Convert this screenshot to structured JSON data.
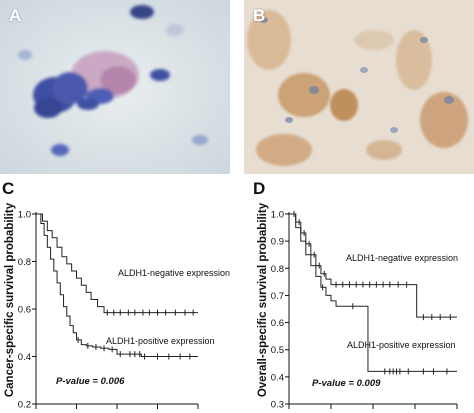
{
  "panels": {
    "a": {
      "letter": "A"
    },
    "b": {
      "letter": "B"
    },
    "c": {
      "letter": "C"
    },
    "d": {
      "letter": "D"
    }
  },
  "colors": {
    "axis": "#111111",
    "curve": "#222222",
    "stain_blue": "#2f3f9c",
    "stain_brown": "#b9824a"
  },
  "chart_data": [
    {
      "panel": "C",
      "type": "line",
      "step": true,
      "title": "",
      "xlabel": "",
      "ylabel": "Cancer-specific survival probability",
      "ylim": [
        0.2,
        1.0
      ],
      "xlim": [
        0,
        100
      ],
      "yticks": [
        0.2,
        0.4,
        0.6,
        0.8,
        1.0
      ],
      "ytick_labels": [
        "0.2",
        "0.4",
        "0.6",
        "0.8",
        "1.0"
      ],
      "grid": false,
      "p_value_text": "P-value = 0.006",
      "series": [
        {
          "name": "ALDH1-negative expression",
          "x": [
            0,
            4,
            7,
            10,
            13,
            16,
            19,
            22,
            25,
            28,
            31,
            34,
            38,
            42,
            100
          ],
          "y": [
            1.0,
            0.97,
            0.93,
            0.9,
            0.86,
            0.82,
            0.79,
            0.76,
            0.73,
            0.7,
            0.67,
            0.64,
            0.61,
            0.585,
            0.585
          ],
          "censor_x": [
            44,
            48,
            52,
            57,
            61,
            66,
            70,
            75,
            80,
            86,
            92,
            97
          ]
        },
        {
          "name": "ALDH1-positive expression",
          "x": [
            0,
            3,
            5,
            7,
            9,
            11,
            13,
            15,
            17,
            19,
            21,
            23,
            25,
            28,
            31,
            35,
            40,
            45,
            50,
            65,
            100
          ],
          "y": [
            1.0,
            0.96,
            0.91,
            0.86,
            0.81,
            0.76,
            0.71,
            0.66,
            0.61,
            0.57,
            0.53,
            0.5,
            0.47,
            0.45,
            0.445,
            0.44,
            0.435,
            0.43,
            0.41,
            0.4,
            0.4
          ],
          "censor_x": [
            26,
            32,
            37,
            42,
            47,
            52,
            58,
            61,
            64,
            67,
            75,
            82,
            89,
            95
          ]
        }
      ]
    },
    {
      "panel": "D",
      "type": "line",
      "step": true,
      "title": "",
      "xlabel": "",
      "ylabel": "Overall-specific survival probability",
      "ylim": [
        0.3,
        1.0
      ],
      "xlim": [
        0,
        100
      ],
      "yticks": [
        0.3,
        0.4,
        0.5,
        0.6,
        0.7,
        0.8,
        0.9,
        1.0
      ],
      "ytick_labels": [
        "0.3",
        "0.4",
        "0.5",
        "0.6",
        "0.7",
        "0.8",
        "0.9",
        "1.0"
      ],
      "grid": false,
      "p_value_text": "P-value = 0.009",
      "series": [
        {
          "name": "ALDH1-negative expression",
          "x": [
            0,
            4,
            7,
            10,
            13,
            16,
            19,
            22,
            25,
            76,
            100
          ],
          "y": [
            1.0,
            0.97,
            0.93,
            0.89,
            0.85,
            0.81,
            0.78,
            0.76,
            0.74,
            0.62,
            0.62
          ],
          "censor_x": [
            3,
            6,
            9,
            12,
            15,
            18,
            21,
            28,
            32,
            36,
            40,
            44,
            48,
            52,
            56,
            60,
            65,
            70,
            80,
            85,
            90,
            96
          ]
        },
        {
          "name": "ALDH1-positive expression",
          "x": [
            0,
            4,
            7,
            10,
            13,
            16,
            19,
            22,
            25,
            28,
            47,
            100
          ],
          "y": [
            1.0,
            0.95,
            0.9,
            0.85,
            0.81,
            0.77,
            0.73,
            0.7,
            0.68,
            0.66,
            0.42,
            0.42
          ],
          "censor_x": [
            20,
            38,
            57,
            60,
            62,
            64,
            66,
            71,
            80,
            86,
            94
          ]
        }
      ]
    }
  ]
}
